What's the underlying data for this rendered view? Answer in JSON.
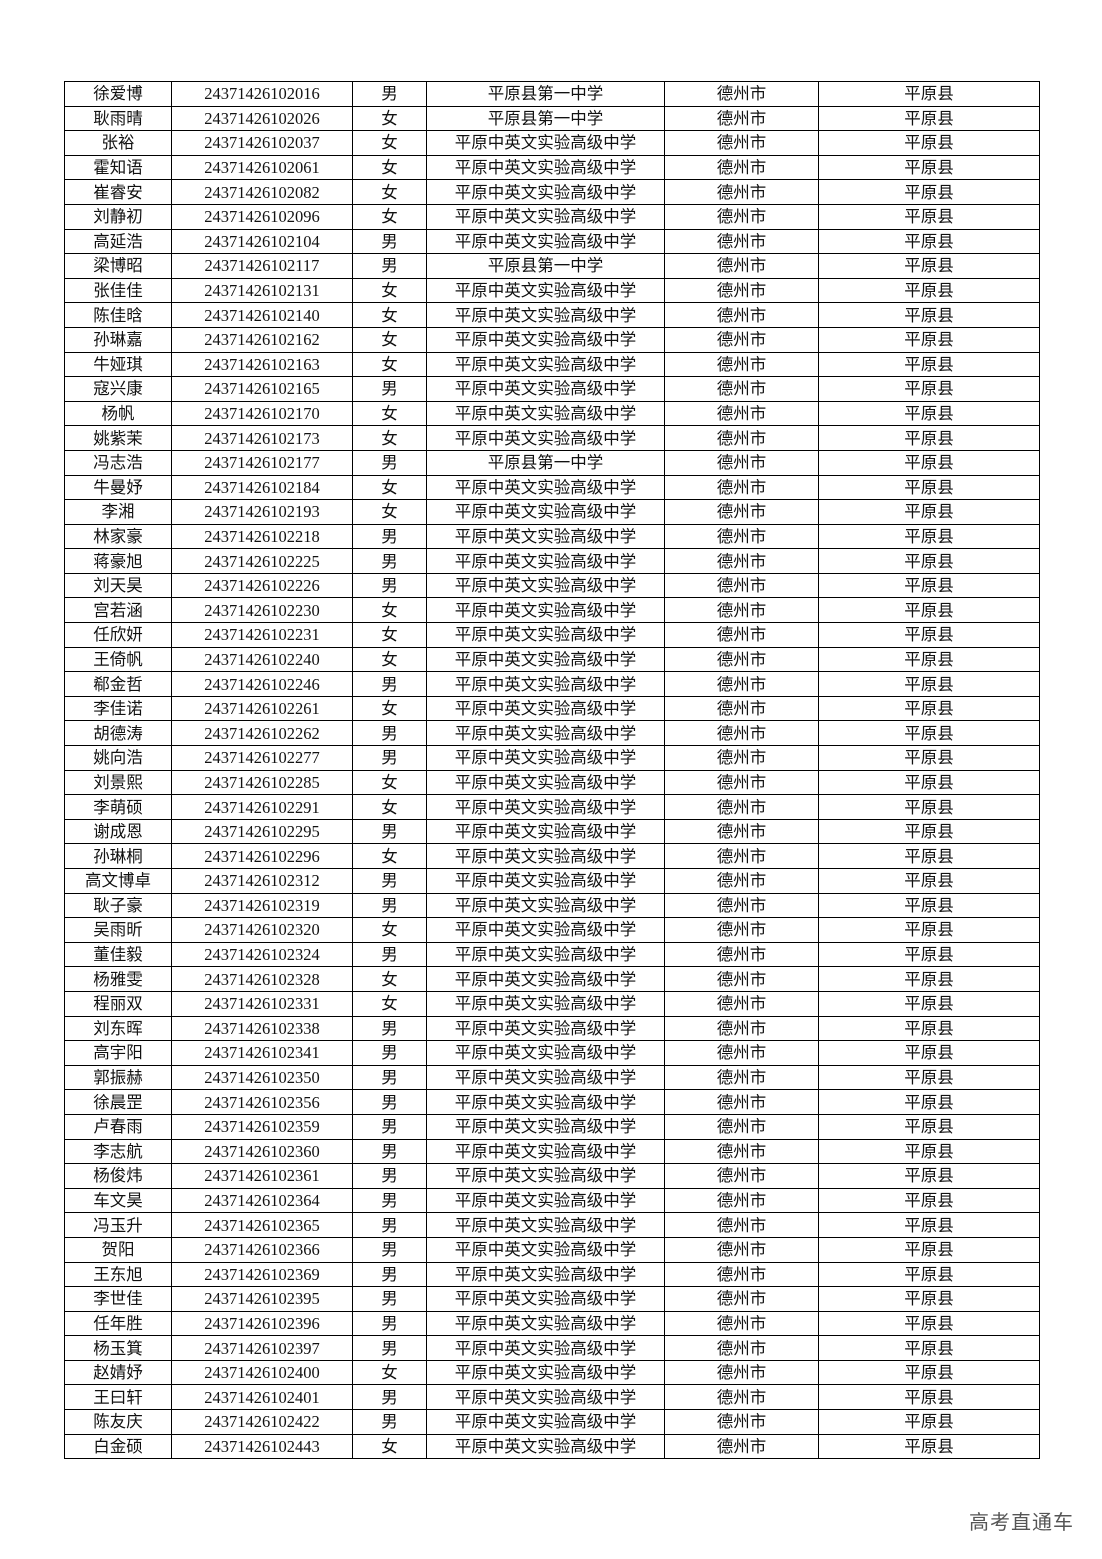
{
  "table": {
    "rows": [
      [
        "徐爱博",
        "24371426102016",
        "男",
        "平原县第一中学",
        "德州市",
        "平原县"
      ],
      [
        "耿雨晴",
        "24371426102026",
        "女",
        "平原县第一中学",
        "德州市",
        "平原县"
      ],
      [
        "张裕",
        "24371426102037",
        "女",
        "平原中英文实验高级中学",
        "德州市",
        "平原县"
      ],
      [
        "霍知语",
        "24371426102061",
        "女",
        "平原中英文实验高级中学",
        "德州市",
        "平原县"
      ],
      [
        "崔睿安",
        "24371426102082",
        "女",
        "平原中英文实验高级中学",
        "德州市",
        "平原县"
      ],
      [
        "刘静初",
        "24371426102096",
        "女",
        "平原中英文实验高级中学",
        "德州市",
        "平原县"
      ],
      [
        "高延浩",
        "24371426102104",
        "男",
        "平原中英文实验高级中学",
        "德州市",
        "平原县"
      ],
      [
        "梁博昭",
        "24371426102117",
        "男",
        "平原县第一中学",
        "德州市",
        "平原县"
      ],
      [
        "张佳佳",
        "24371426102131",
        "女",
        "平原中英文实验高级中学",
        "德州市",
        "平原县"
      ],
      [
        "陈佳晗",
        "24371426102140",
        "女",
        "平原中英文实验高级中学",
        "德州市",
        "平原县"
      ],
      [
        "孙琳嘉",
        "24371426102162",
        "女",
        "平原中英文实验高级中学",
        "德州市",
        "平原县"
      ],
      [
        "牛娅琪",
        "24371426102163",
        "女",
        "平原中英文实验高级中学",
        "德州市",
        "平原县"
      ],
      [
        "寇兴康",
        "24371426102165",
        "男",
        "平原中英文实验高级中学",
        "德州市",
        "平原县"
      ],
      [
        "杨帆",
        "24371426102170",
        "女",
        "平原中英文实验高级中学",
        "德州市",
        "平原县"
      ],
      [
        "姚紫茉",
        "24371426102173",
        "女",
        "平原中英文实验高级中学",
        "德州市",
        "平原县"
      ],
      [
        "冯志浩",
        "24371426102177",
        "男",
        "平原县第一中学",
        "德州市",
        "平原县"
      ],
      [
        "牛曼妤",
        "24371426102184",
        "女",
        "平原中英文实验高级中学",
        "德州市",
        "平原县"
      ],
      [
        "李湘",
        "24371426102193",
        "女",
        "平原中英文实验高级中学",
        "德州市",
        "平原县"
      ],
      [
        "林家豪",
        "24371426102218",
        "男",
        "平原中英文实验高级中学",
        "德州市",
        "平原县"
      ],
      [
        "蒋豪旭",
        "24371426102225",
        "男",
        "平原中英文实验高级中学",
        "德州市",
        "平原县"
      ],
      [
        "刘天昊",
        "24371426102226",
        "男",
        "平原中英文实验高级中学",
        "德州市",
        "平原县"
      ],
      [
        "宫若涵",
        "24371426102230",
        "女",
        "平原中英文实验高级中学",
        "德州市",
        "平原县"
      ],
      [
        "任欣妍",
        "24371426102231",
        "女",
        "平原中英文实验高级中学",
        "德州市",
        "平原县"
      ],
      [
        "王倚帆",
        "24371426102240",
        "女",
        "平原中英文实验高级中学",
        "德州市",
        "平原县"
      ],
      [
        "郗金哲",
        "24371426102246",
        "男",
        "平原中英文实验高级中学",
        "德州市",
        "平原县"
      ],
      [
        "李佳诺",
        "24371426102261",
        "女",
        "平原中英文实验高级中学",
        "德州市",
        "平原县"
      ],
      [
        "胡德涛",
        "24371426102262",
        "男",
        "平原中英文实验高级中学",
        "德州市",
        "平原县"
      ],
      [
        "姚向浩",
        "24371426102277",
        "男",
        "平原中英文实验高级中学",
        "德州市",
        "平原县"
      ],
      [
        "刘景熙",
        "24371426102285",
        "女",
        "平原中英文实验高级中学",
        "德州市",
        "平原县"
      ],
      [
        "李萌硕",
        "24371426102291",
        "女",
        "平原中英文实验高级中学",
        "德州市",
        "平原县"
      ],
      [
        "谢成恩",
        "24371426102295",
        "男",
        "平原中英文实验高级中学",
        "德州市",
        "平原县"
      ],
      [
        "孙琳桐",
        "24371426102296",
        "女",
        "平原中英文实验高级中学",
        "德州市",
        "平原县"
      ],
      [
        "高文博卓",
        "24371426102312",
        "男",
        "平原中英文实验高级中学",
        "德州市",
        "平原县"
      ],
      [
        "耿子豪",
        "24371426102319",
        "男",
        "平原中英文实验高级中学",
        "德州市",
        "平原县"
      ],
      [
        "吴雨昕",
        "24371426102320",
        "女",
        "平原中英文实验高级中学",
        "德州市",
        "平原县"
      ],
      [
        "董佳毅",
        "24371426102324",
        "男",
        "平原中英文实验高级中学",
        "德州市",
        "平原县"
      ],
      [
        "杨雅雯",
        "24371426102328",
        "女",
        "平原中英文实验高级中学",
        "德州市",
        "平原县"
      ],
      [
        "程丽双",
        "24371426102331",
        "女",
        "平原中英文实验高级中学",
        "德州市",
        "平原县"
      ],
      [
        "刘东晖",
        "24371426102338",
        "男",
        "平原中英文实验高级中学",
        "德州市",
        "平原县"
      ],
      [
        "高宇阳",
        "24371426102341",
        "男",
        "平原中英文实验高级中学",
        "德州市",
        "平原县"
      ],
      [
        "郭振赫",
        "24371426102350",
        "男",
        "平原中英文实验高级中学",
        "德州市",
        "平原县"
      ],
      [
        "徐晨罡",
        "24371426102356",
        "男",
        "平原中英文实验高级中学",
        "德州市",
        "平原县"
      ],
      [
        "卢春雨",
        "24371426102359",
        "男",
        "平原中英文实验高级中学",
        "德州市",
        "平原县"
      ],
      [
        "李志航",
        "24371426102360",
        "男",
        "平原中英文实验高级中学",
        "德州市",
        "平原县"
      ],
      [
        "杨俊炜",
        "24371426102361",
        "男",
        "平原中英文实验高级中学",
        "德州市",
        "平原县"
      ],
      [
        "车文昊",
        "24371426102364",
        "男",
        "平原中英文实验高级中学",
        "德州市",
        "平原县"
      ],
      [
        "冯玉升",
        "24371426102365",
        "男",
        "平原中英文实验高级中学",
        "德州市",
        "平原县"
      ],
      [
        "贺阳",
        "24371426102366",
        "男",
        "平原中英文实验高级中学",
        "德州市",
        "平原县"
      ],
      [
        "王东旭",
        "24371426102369",
        "男",
        "平原中英文实验高级中学",
        "德州市",
        "平原县"
      ],
      [
        "李世佳",
        "24371426102395",
        "男",
        "平原中英文实验高级中学",
        "德州市",
        "平原县"
      ],
      [
        "任年胜",
        "24371426102396",
        "男",
        "平原中英文实验高级中学",
        "德州市",
        "平原县"
      ],
      [
        "杨玉箕",
        "24371426102397",
        "男",
        "平原中英文实验高级中学",
        "德州市",
        "平原县"
      ],
      [
        "赵婧妤",
        "24371426102400",
        "女",
        "平原中英文实验高级中学",
        "德州市",
        "平原县"
      ],
      [
        "王曰轩",
        "24371426102401",
        "男",
        "平原中英文实验高级中学",
        "德州市",
        "平原县"
      ],
      [
        "陈友庆",
        "24371426102422",
        "男",
        "平原中英文实验高级中学",
        "德州市",
        "平原县"
      ],
      [
        "白金硕",
        "24371426102443",
        "女",
        "平原中英文实验高级中学",
        "德州市",
        "平原县"
      ]
    ]
  },
  "watermark": "高考直通车"
}
